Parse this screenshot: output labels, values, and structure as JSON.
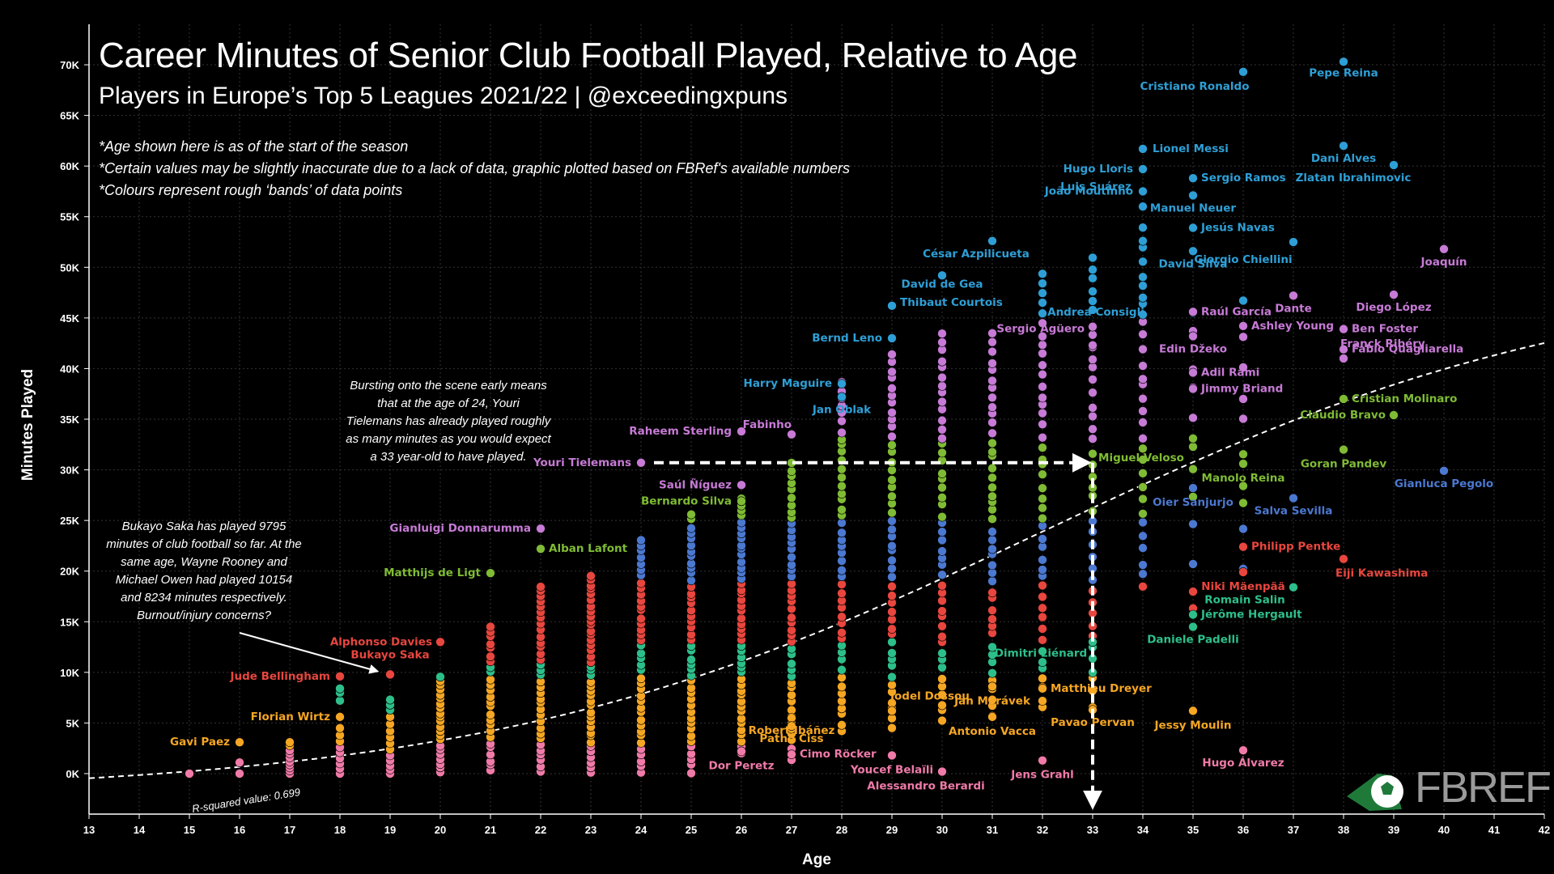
{
  "header": {
    "title": "Career Minutes of Senior Club Football Played, Relative to Age",
    "subtitle": "Players in Europe’s Top 5 Leagues 2021/22 | @exceedingxpuns"
  },
  "notes": [
    "*Age shown here is as of the start of the season",
    "*Certain values may be slightly inaccurate due to a lack of data, graphic plotted based on FBRef's available numbers",
    "*Colours represent rough ‘bands’ of data points"
  ],
  "annotations": {
    "saka": [
      "Bukayo Saka has played 9795",
      "minutes of club football so far. At the",
      "same age, Wayne Rooney and",
      "Michael Owen had played 10154",
      "and 8234 minutes respectively.",
      "Burnout/injury concerns?"
    ],
    "tielemans": [
      "Bursting onto the scene early means",
      "that at the age of 24, Youri",
      "Tielemans has already played roughly",
      "as many minutes as you would expect",
      "a 33 year-old to have played."
    ]
  },
  "logo": {
    "main": "FB",
    "accent": "REF"
  },
  "colors": {
    "blue": "#2e9fd6",
    "purple": "#c77ad6",
    "green": "#7fbb34",
    "teal": "#2dbf8a",
    "red": "#e8463e",
    "orange": "#f5a623",
    "pink": "#f07aa8",
    "royal": "#4b78d0",
    "background": "#000000",
    "grid": "#333333",
    "trend": "#ffffff"
  },
  "chart_data": {
    "type": "scatter",
    "xlabel": "Age",
    "ylabel": "Minutes Played",
    "xlim": [
      13,
      42
    ],
    "ylim": [
      -4000,
      74000
    ],
    "xticks": [
      13,
      14,
      15,
      16,
      17,
      18,
      19,
      20,
      21,
      22,
      23,
      24,
      25,
      26,
      27,
      28,
      29,
      30,
      31,
      32,
      33,
      34,
      35,
      36,
      37,
      38,
      39,
      40,
      41,
      42
    ],
    "yticks": [
      0,
      5000,
      10000,
      15000,
      20000,
      25000,
      30000,
      35000,
      40000,
      45000,
      50000,
      55000,
      60000,
      65000,
      70000
    ],
    "ytick_labels": [
      "0K",
      "5K",
      "10K",
      "15K",
      "20K",
      "25K",
      "30K",
      "35K",
      "40K",
      "45K",
      "50K",
      "55K",
      "60K",
      "65K",
      "70K"
    ],
    "grid": true,
    "trend": {
      "type": "logistic",
      "label": "R-squared value: 0.699"
    },
    "labeled_points": [
      {
        "name": "Cristiano Ronaldo",
        "age": 36,
        "min": 69300,
        "color": "blue"
      },
      {
        "name": "Pepe Reina",
        "age": 38,
        "min": 70300,
        "color": "blue"
      },
      {
        "name": "Lionel Messi",
        "age": 34,
        "min": 61700,
        "color": "blue"
      },
      {
        "name": "Dani Alves",
        "age": 38,
        "min": 62000,
        "color": "blue"
      },
      {
        "name": "Zlatan Ibrahimovic",
        "age": 39,
        "min": 60100,
        "color": "blue"
      },
      {
        "name": "Hugo Lloris",
        "age": 34,
        "min": 59700,
        "color": "blue"
      },
      {
        "name": "Sergio Ramos",
        "age": 35,
        "min": 58800,
        "color": "blue"
      },
      {
        "name": "João Moutinho",
        "age": 34,
        "min": 57500,
        "color": "blue"
      },
      {
        "name": "Manuel Neuer",
        "age": 35,
        "min": 57100,
        "color": "blue"
      },
      {
        "name": "Luis Suárez",
        "age": 34,
        "min": 56000,
        "color": "blue"
      },
      {
        "name": "Jesús Navas",
        "age": 35,
        "min": 53900,
        "color": "blue"
      },
      {
        "name": "César Azpilicueta",
        "age": 31,
        "min": 52600,
        "color": "blue"
      },
      {
        "name": "Giorgio Chiellini",
        "age": 37,
        "min": 52500,
        "color": "blue"
      },
      {
        "name": "David Silva",
        "age": 35,
        "min": 51600,
        "color": "blue"
      },
      {
        "name": "Joaquín",
        "age": 40,
        "min": 51800,
        "color": "purple"
      },
      {
        "name": "David de Gea",
        "age": 30,
        "min": 49200,
        "color": "blue"
      },
      {
        "name": "Thibaut Courtois",
        "age": 29,
        "min": 46200,
        "color": "blue"
      },
      {
        "name": "Andrea Consigli",
        "age": 34,
        "min": 47000,
        "color": "blue"
      },
      {
        "name": "Raúl García",
        "age": 35,
        "min": 45600,
        "color": "purple"
      },
      {
        "name": "Dante",
        "age": 37,
        "min": 47200,
        "color": "purple"
      },
      {
        "name": "Diego López",
        "age": 39,
        "min": 47300,
        "color": "purple"
      },
      {
        "name": "Sergio Agüero",
        "age": 33,
        "min": 42300,
        "color": "purple"
      },
      {
        "name": "Ashley Young",
        "age": 36,
        "min": 44200,
        "color": "purple"
      },
      {
        "name": "Ben Foster",
        "age": 38,
        "min": 43900,
        "color": "purple"
      },
      {
        "name": "Bernd Leno",
        "age": 29,
        "min": 43000,
        "color": "blue"
      },
      {
        "name": "Edin Džeko",
        "age": 35,
        "min": 43200,
        "color": "purple"
      },
      {
        "name": "Fabio Quagliarella",
        "age": 38,
        "min": 41900,
        "color": "purple"
      },
      {
        "name": "Franck Ribéry",
        "age": 38,
        "min": 41000,
        "color": "purple"
      },
      {
        "name": "Adil Rami",
        "age": 35,
        "min": 39600,
        "color": "purple"
      },
      {
        "name": "Harry Maguire",
        "age": 28,
        "min": 38500,
        "color": "blue"
      },
      {
        "name": "Jimmy Briand",
        "age": 35,
        "min": 38000,
        "color": "purple"
      },
      {
        "name": "Cristian Molinaro",
        "age": 38,
        "min": 37000,
        "color": "green"
      },
      {
        "name": "Jan Oblak",
        "age": 28,
        "min": 37200,
        "color": "blue"
      },
      {
        "name": "Claudio Bravo",
        "age": 39,
        "min": 35400,
        "color": "green"
      },
      {
        "name": "Fabinho",
        "age": 27,
        "min": 33500,
        "color": "purple"
      },
      {
        "name": "Raheem Sterling",
        "age": 26,
        "min": 33800,
        "color": "purple"
      },
      {
        "name": "Miguel Veloso",
        "age": 35,
        "min": 33100,
        "color": "green"
      },
      {
        "name": "Youri Tielemans",
        "age": 24,
        "min": 30700,
        "color": "purple"
      },
      {
        "name": "Goran Pandev",
        "age": 38,
        "min": 32000,
        "color": "green"
      },
      {
        "name": "Saúl Ñíguez",
        "age": 26,
        "min": 28500,
        "color": "purple"
      },
      {
        "name": "Manolo Reina",
        "age": 36,
        "min": 30600,
        "color": "green"
      },
      {
        "name": "Gianluca Pegolo",
        "age": 40,
        "min": 29900,
        "color": "royal"
      },
      {
        "name": "Bernardo Silva",
        "age": 26,
        "min": 26900,
        "color": "green"
      },
      {
        "name": "Oier Sanjurjo",
        "age": 35,
        "min": 28200,
        "color": "royal"
      },
      {
        "name": "Salva Sevilla",
        "age": 37,
        "min": 27200,
        "color": "royal"
      },
      {
        "name": "Gianluigi Donnarumma",
        "age": 22,
        "min": 24200,
        "color": "purple"
      },
      {
        "name": "Philipp Pentke",
        "age": 36,
        "min": 22400,
        "color": "red"
      },
      {
        "name": "Alban Lafont",
        "age": 22,
        "min": 22200,
        "color": "green"
      },
      {
        "name": "Eiji Kawashima",
        "age": 38,
        "min": 21200,
        "color": "red"
      },
      {
        "name": "Niki Mäenpää",
        "age": 36,
        "min": 19900,
        "color": "red"
      },
      {
        "name": "Matthijs de Ligt",
        "age": 21,
        "min": 19800,
        "color": "green"
      },
      {
        "name": "Romain Salin",
        "age": 37,
        "min": 18400,
        "color": "teal"
      },
      {
        "name": "Jérôme Hergault",
        "age": 35,
        "min": 15700,
        "color": "teal"
      },
      {
        "name": "Daniele Padelli",
        "age": 35,
        "min": 14500,
        "color": "teal"
      },
      {
        "name": "Alphonso Davies",
        "age": 20,
        "min": 13000,
        "color": "red"
      },
      {
        "name": "Dimitri Liénard",
        "age": 33,
        "min": 13000,
        "color": "teal"
      },
      {
        "name": "Bukayo Saka",
        "age": 19,
        "min": 9795,
        "color": "red"
      },
      {
        "name": "Jude Bellingham",
        "age": 18,
        "min": 9600,
        "color": "red"
      },
      {
        "name": "Matthieu Dreyer",
        "age": 32,
        "min": 8400,
        "color": "orange"
      },
      {
        "name": "Jodel Dossou",
        "age": 29,
        "min": 6200,
        "color": "orange"
      },
      {
        "name": "Jan Morávek",
        "age": 31,
        "min": 8600,
        "color": "orange"
      },
      {
        "name": "Florian Wirtz",
        "age": 18,
        "min": 5600,
        "color": "orange"
      },
      {
        "name": "Robert Ibáñez",
        "age": 27,
        "min": 5500,
        "color": "orange"
      },
      {
        "name": "Jessy Moulin",
        "age": 35,
        "min": 6200,
        "color": "orange"
      },
      {
        "name": "Pavao Pervan",
        "age": 33,
        "min": 6300,
        "color": "orange"
      },
      {
        "name": "Antonio Vacca",
        "age": 31,
        "min": 5600,
        "color": "orange"
      },
      {
        "name": "Gavi Paez",
        "age": 16,
        "min": 3100,
        "color": "orange"
      },
      {
        "name": "Pathé Ciss",
        "age": 27,
        "min": 4700,
        "color": "orange"
      },
      {
        "name": "Cimo Röcker",
        "age": 27,
        "min": 1900,
        "color": "pink"
      },
      {
        "name": "Hugo Álvarez",
        "age": 36,
        "min": 2300,
        "color": "pink"
      },
      {
        "name": "Dor Peretz",
        "age": 26,
        "min": 2200,
        "color": "pink"
      },
      {
        "name": "Youcef Belaïli",
        "age": 29,
        "min": 1800,
        "color": "pink"
      },
      {
        "name": "Jens Grahl",
        "age": 32,
        "min": 1300,
        "color": "pink"
      },
      {
        "name": "Alessandro Berardi",
        "age": 30,
        "min": 200,
        "color": "pink"
      }
    ],
    "unlabeled_columns": [
      {
        "age": 15,
        "values": [
          0
        ],
        "colors": [
          "pink"
        ]
      },
      {
        "age": 16,
        "values": [
          0,
          1100
        ],
        "colors": [
          "pink",
          "pink"
        ]
      },
      {
        "age": 17,
        "values": [
          0,
          300,
          600,
          900,
          1200,
          1600,
          2000,
          2300,
          2800,
          3100
        ],
        "colors": [
          "pink",
          "pink",
          "pink",
          "pink",
          "pink",
          "pink",
          "pink",
          "pink",
          "orange",
          "orange"
        ]
      },
      {
        "age": 18,
        "values": [
          0,
          500,
          1000,
          1500,
          2100,
          2600,
          3200,
          3800,
          4500,
          7200,
          8000,
          8400
        ],
        "colors": [
          "pink",
          "pink",
          "pink",
          "pink",
          "pink",
          "pink",
          "orange",
          "orange",
          "orange",
          "teal",
          "teal",
          "teal"
        ]
      },
      {
        "age": 19,
        "values": [
          0,
          400,
          800,
          1300,
          1800,
          2400,
          3000,
          3600,
          4200,
          4900,
          5600,
          6300,
          6800,
          7300
        ],
        "colors": [
          "pink",
          "pink",
          "pink",
          "pink",
          "pink",
          "orange",
          "orange",
          "orange",
          "orange",
          "orange",
          "orange",
          "teal",
          "teal",
          "teal"
        ]
      }
    ]
  }
}
